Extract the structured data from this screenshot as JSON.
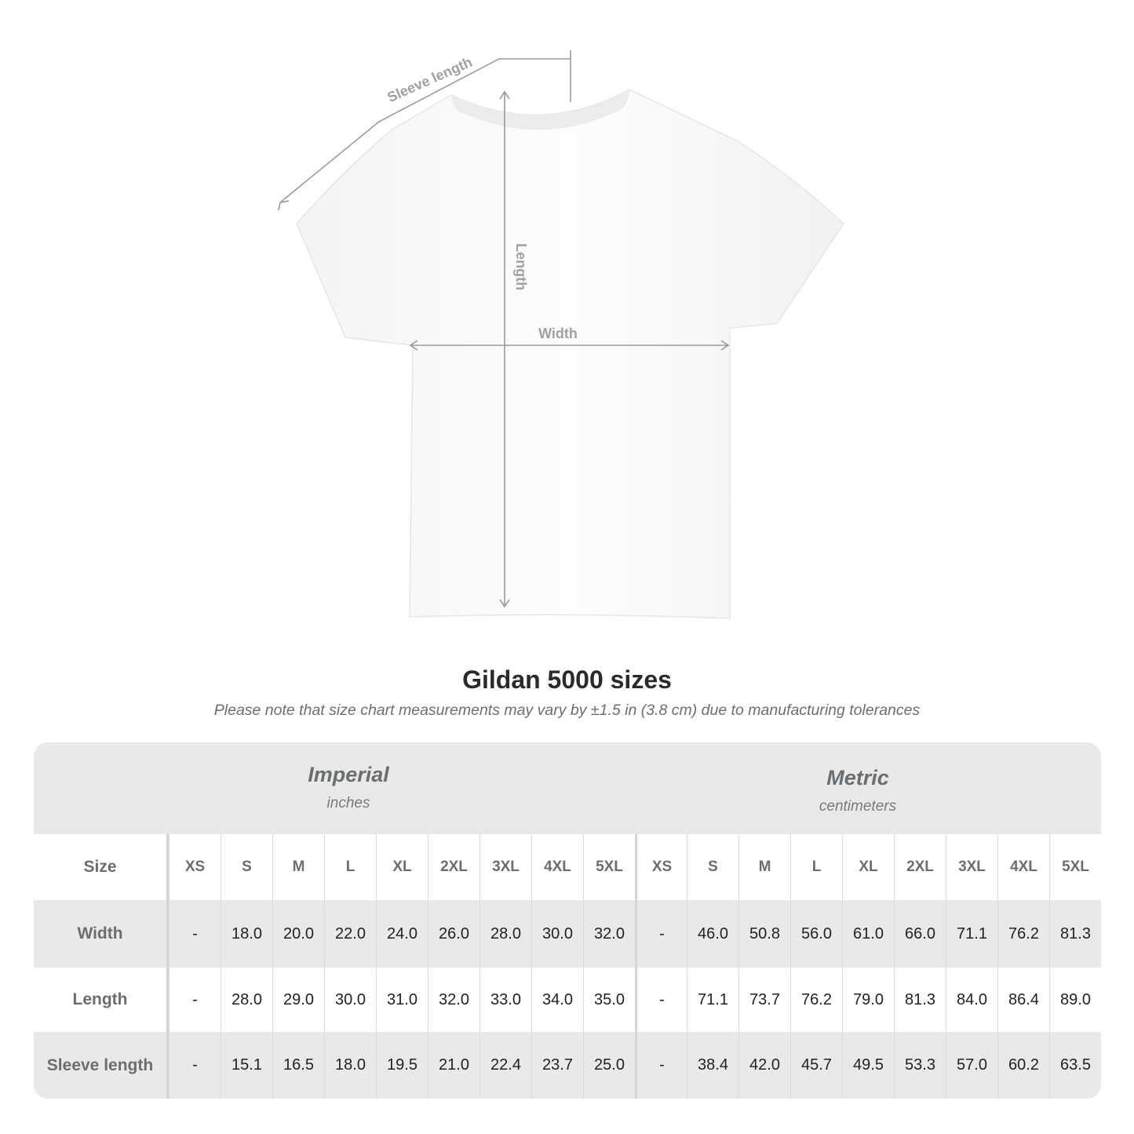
{
  "diagram": {
    "labels": {
      "sleeve": "Sleeve length",
      "length": "Length",
      "width": "Width"
    },
    "line_color": "#9a9a9a"
  },
  "title": "Gildan 5000 sizes",
  "note": "Please note that size chart measurements may vary by ±1.5 in (3.8 cm) due to manufacturing tolerances",
  "table": {
    "imperial": {
      "name": "Imperial",
      "unit": "inches"
    },
    "metric": {
      "name": "Metric",
      "unit": "centimeters"
    },
    "size_label": "Size",
    "sizes": [
      "XS",
      "S",
      "M",
      "L",
      "XL",
      "2XL",
      "3XL",
      "4XL",
      "5XL"
    ],
    "rows": [
      {
        "label": "Width",
        "imperial": [
          "-",
          "18.0",
          "20.0",
          "22.0",
          "24.0",
          "26.0",
          "28.0",
          "30.0",
          "32.0"
        ],
        "metric": [
          "-",
          "46.0",
          "50.8",
          "56.0",
          "61.0",
          "66.0",
          "71.1",
          "76.2",
          "81.3"
        ]
      },
      {
        "label": "Length",
        "imperial": [
          "-",
          "28.0",
          "29.0",
          "30.0",
          "31.0",
          "32.0",
          "33.0",
          "34.0",
          "35.0"
        ],
        "metric": [
          "-",
          "71.1",
          "73.7",
          "76.2",
          "79.0",
          "81.3",
          "84.0",
          "86.4",
          "89.0"
        ]
      },
      {
        "label": "Sleeve length",
        "imperial": [
          "-",
          "15.1",
          "16.5",
          "18.0",
          "19.5",
          "21.0",
          "22.4",
          "23.7",
          "25.0"
        ],
        "metric": [
          "-",
          "38.4",
          "42.0",
          "45.7",
          "49.5",
          "53.3",
          "57.0",
          "60.2",
          "63.5"
        ]
      }
    ]
  }
}
